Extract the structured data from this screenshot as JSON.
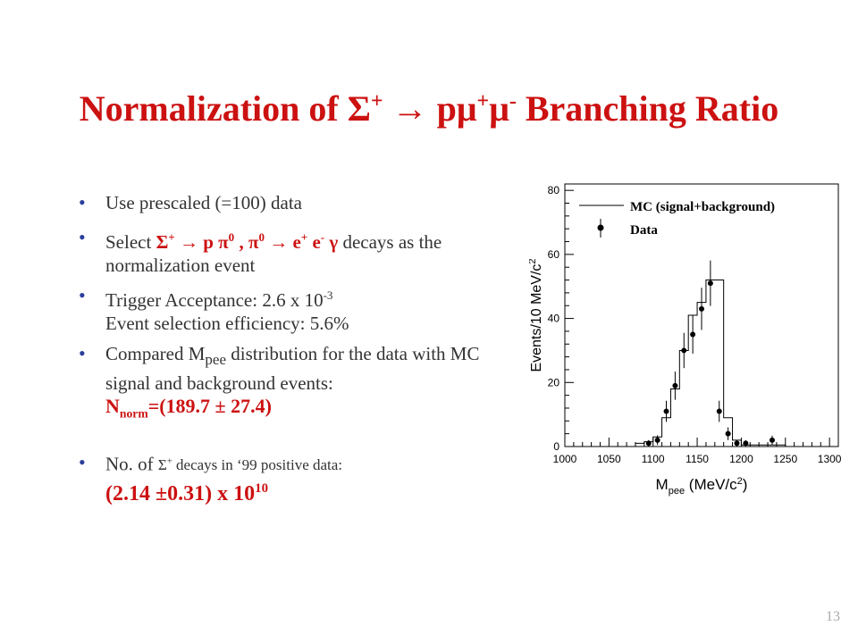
{
  "title": {
    "part1": "Normalization of ",
    "sigma": "Σ",
    "plus": "+",
    "arrow": " → p",
    "mu": "μ",
    "minus": "-",
    "part2": " Branching Ratio"
  },
  "bullets": {
    "b1": "Use prescaled (=100) data",
    "b2": {
      "prefix": "Select ",
      "decay1": "Σ",
      "decay1_sup": "+",
      "decay1_arrow": " → p ",
      "pi0": "π",
      "pi0_sup": "0",
      "comma": " , ",
      "pi0b": "π",
      "pi0b_sup": "0",
      "arrow2": " → e",
      "eplus_sup": "+",
      "eminus": " e",
      "eminus_sup": "-",
      "gamma": " γ",
      "suffix": " decays as the normalization event"
    },
    "b3": {
      "line1": "Trigger Acceptance:  2.6 x 10",
      "exp": "-3",
      "line2": "Event selection efficiency: 5.6%"
    },
    "b4": {
      "t1": "Compared M",
      "sub": "pee",
      "t2": " distribution for the data with MC signal and background events:",
      "n": "N",
      "n_sub": "norm",
      "n_val": "=(189.7 ± 27.4)"
    },
    "b5": {
      "t1": "No. of ",
      "sigma": "Σ",
      "sigma_sup": "+",
      "t2": " decays in ‘99 positive data:",
      "val": "(2.14 ±0.31) x 10",
      "exp": "10"
    }
  },
  "slide_number": "13",
  "chart_data": {
    "type": "histogram",
    "xlabel_main": "M",
    "xlabel_sub": "pee",
    "xlabel_unit": " (MeV/c",
    "xlabel_sup": "2",
    "xlabel_end": ")",
    "ylabel": "Events/10 MeV/c",
    "ylabel_sup": "2",
    "xlim": [
      1000,
      1310
    ],
    "ylim": [
      0,
      82
    ],
    "xticks": [
      "1000",
      "1050",
      "1100",
      "1150",
      "1200",
      "1250",
      "1300"
    ],
    "yticks": [
      "0",
      "20",
      "40",
      "60",
      "80"
    ],
    "legend": [
      {
        "label": "MC (signal+background)",
        "style": "line"
      },
      {
        "label": "Data",
        "style": "marker"
      }
    ],
    "legend_placement": "top",
    "mc_bins": {
      "edges": [
        1080,
        1090,
        1100,
        1110,
        1120,
        1130,
        1140,
        1150,
        1160,
        1170,
        1180,
        1190,
        1200,
        1210,
        1220,
        1230,
        1240,
        1250
      ],
      "values": [
        1,
        1.5,
        3,
        9,
        18,
        30,
        41,
        45,
        52,
        52,
        9,
        2,
        0.5,
        0.5,
        0.5,
        0.5,
        0.5
      ]
    },
    "data_points": [
      {
        "x": 1095,
        "y": 1,
        "err": 1
      },
      {
        "x": 1105,
        "y": 2,
        "err": 1.5
      },
      {
        "x": 1115,
        "y": 11,
        "err": 3.3
      },
      {
        "x": 1125,
        "y": 19,
        "err": 4.4
      },
      {
        "x": 1135,
        "y": 30,
        "err": 5.5
      },
      {
        "x": 1145,
        "y": 35,
        "err": 6
      },
      {
        "x": 1155,
        "y": 43,
        "err": 6.6
      },
      {
        "x": 1165,
        "y": 51,
        "err": 7.1
      },
      {
        "x": 1175,
        "y": 11,
        "err": 3.3
      },
      {
        "x": 1185,
        "y": 4,
        "err": 2
      },
      {
        "x": 1195,
        "y": 1,
        "err": 1
      },
      {
        "x": 1205,
        "y": 1,
        "err": 1
      },
      {
        "x": 1235,
        "y": 2,
        "err": 1.4
      }
    ]
  }
}
